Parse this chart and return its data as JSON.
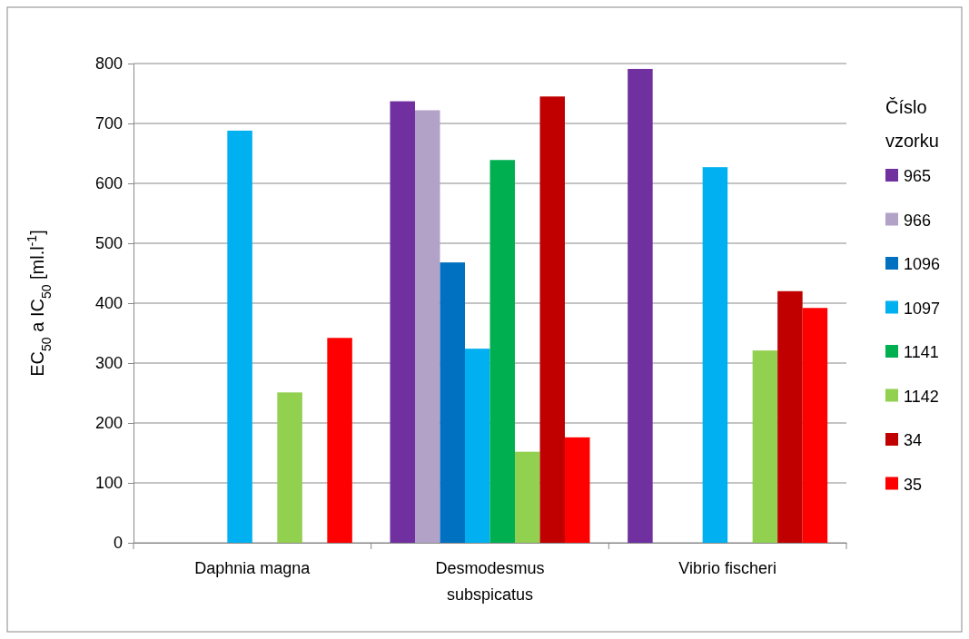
{
  "chart_data": {
    "type": "bar",
    "categories": [
      "Daphnia magna",
      "Desmodesmus subspicatus",
      "Vibrio fischeri"
    ],
    "ylabel": "EC$_{50}$ a IC$_{50}$ [ml.l$^{-1}$]",
    "legend_title": "Číslo vzorku",
    "series": [
      {
        "name": "965",
        "color": "#7030a0",
        "values": [
          null,
          737,
          791
        ]
      },
      {
        "name": "966",
        "color": "#b3a2c7",
        "values": [
          null,
          722,
          null
        ]
      },
      {
        "name": "1096",
        "color": "#0070c0",
        "values": [
          null,
          468,
          null
        ]
      },
      {
        "name": "1097",
        "color": "#00b0f0",
        "values": [
          688,
          324,
          627
        ]
      },
      {
        "name": "1141",
        "color": "#00b050",
        "values": [
          null,
          639,
          null
        ]
      },
      {
        "name": "1142",
        "color": "#92d050",
        "values": [
          251,
          152,
          321
        ]
      },
      {
        "name": "34",
        "color": "#c00000",
        "values": [
          null,
          745,
          420
        ]
      },
      {
        "name": "35",
        "color": "#ff0000",
        "values": [
          342,
          176,
          392
        ]
      }
    ],
    "ylim": [
      0,
      800
    ],
    "yticks": [
      0,
      100,
      200,
      300,
      400,
      500,
      600,
      700,
      800
    ],
    "grid": "y",
    "legend": "right"
  }
}
